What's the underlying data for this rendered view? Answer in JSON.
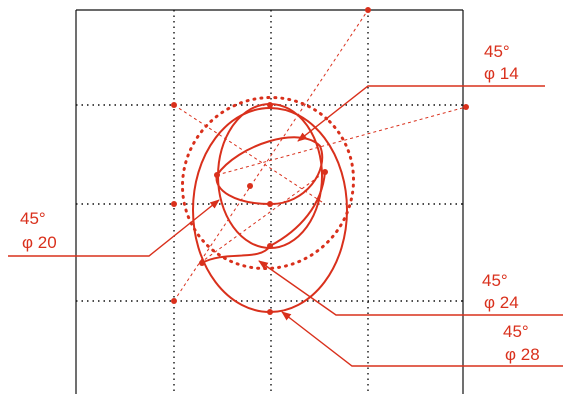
{
  "colors": {
    "accent": "#d9301c",
    "frame": "#111111",
    "grid": "#111111"
  },
  "annotations": [
    {
      "id": "a14",
      "angle": "45°",
      "diameter": "φ 14"
    },
    {
      "id": "a20",
      "angle": "45°",
      "diameter": "φ 20"
    },
    {
      "id": "a24",
      "angle": "45°",
      "diameter": "φ 24"
    },
    {
      "id": "a28",
      "angle": "45°",
      "diameter": "φ 28"
    }
  ]
}
